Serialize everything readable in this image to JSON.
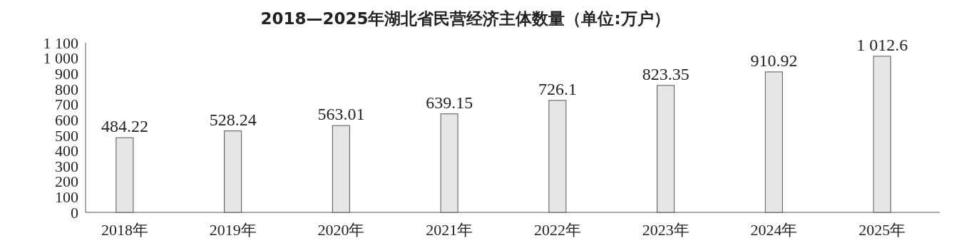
{
  "chart_data": {
    "type": "bar",
    "title": "2018—2025年湖北省民营经济主体数量（单位:万户）",
    "categories": [
      "2018年",
      "2019年",
      "2020年",
      "2021年",
      "2022年",
      "2023年",
      "2024年",
      "2025年"
    ],
    "values": [
      484.22,
      528.24,
      563.01,
      639.15,
      726.1,
      823.35,
      910.92,
      1012.6
    ],
    "value_labels": [
      "484.22",
      "528.24",
      "563.01",
      "639.15",
      "726.1",
      "823.35",
      "910.92",
      "1 012.6"
    ],
    "color": "#e6e6e6",
    "ylim": [
      0,
      1100
    ],
    "yticks": [
      0,
      100,
      200,
      300,
      400,
      500,
      600,
      700,
      800,
      900,
      {
        "value": 1000,
        "label": "1 000"
      },
      {
        "value": 1100,
        "label": "1 100"
      }
    ],
    "grid": false
  }
}
